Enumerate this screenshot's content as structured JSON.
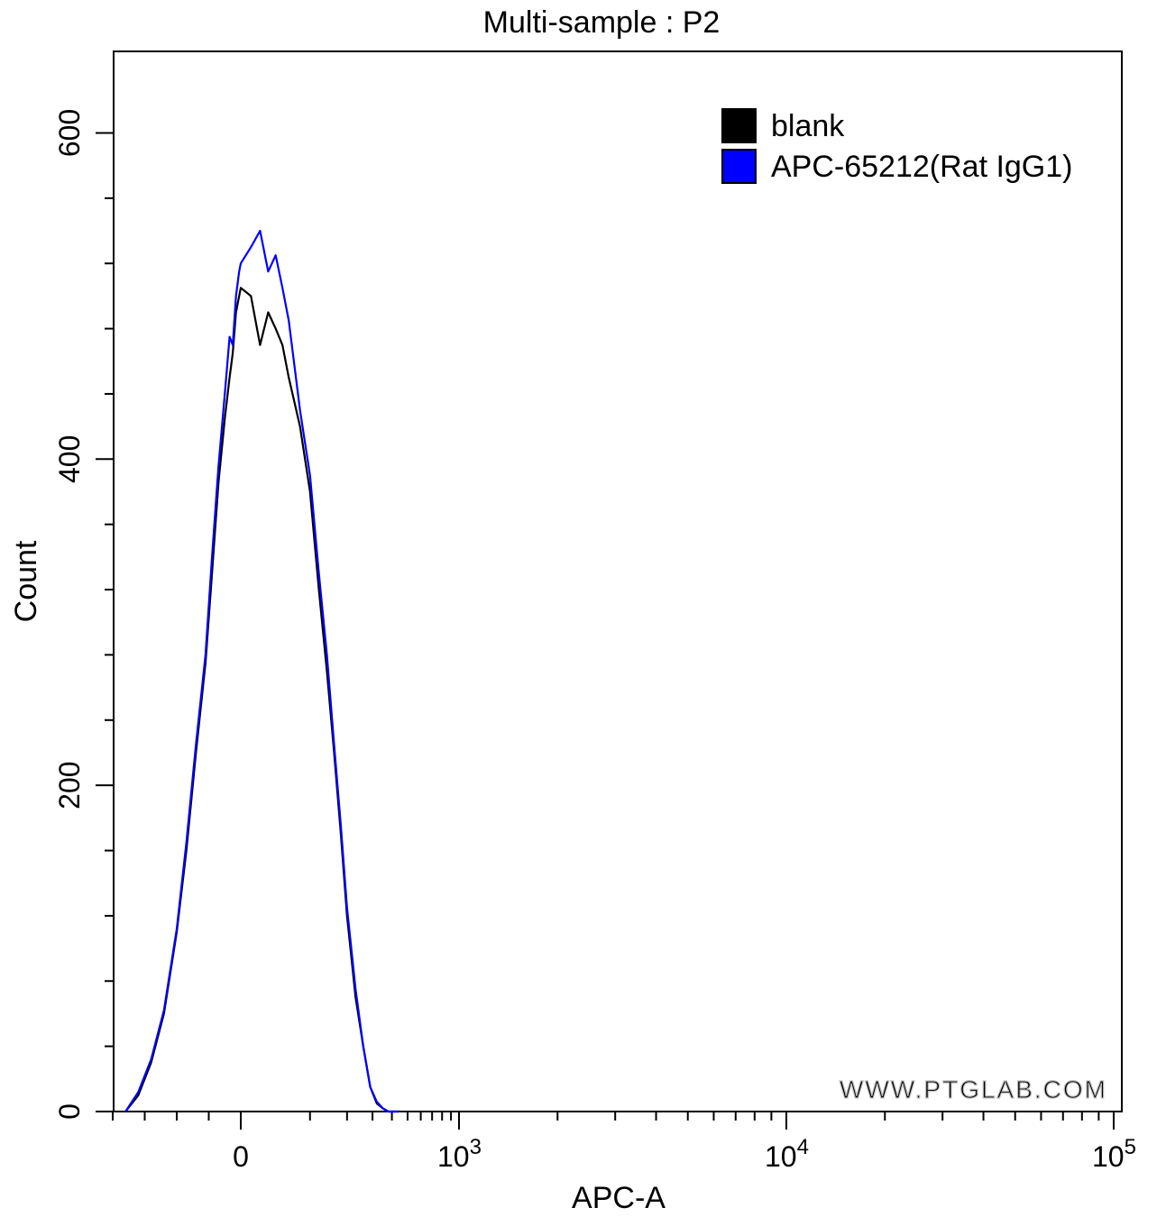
{
  "chart_data": {
    "type": "line",
    "title": "Multi-sample : P2",
    "xlabel": "APC-A",
    "ylabel": "Count",
    "x_scale": "biexponential",
    "xlim": [
      -400,
      100000
    ],
    "ylim": [
      0,
      650
    ],
    "x_tick_labels": [
      {
        "value": 0,
        "label": "0"
      },
      {
        "value": 1000,
        "base": "10",
        "exp": "3"
      },
      {
        "value": 10000,
        "base": "10",
        "exp": "4"
      },
      {
        "value": 100000,
        "base": "10",
        "exp": "5"
      }
    ],
    "y_ticks": [
      0,
      200,
      400,
      600
    ],
    "y_tick_labels": [
      "0",
      "200",
      "400",
      "600"
    ],
    "legend_position": "top-right",
    "grid": false,
    "watermark": "WWW.PTGLAB.COM",
    "series": [
      {
        "name": "blank",
        "color": "#000000",
        "x": [
          -360,
          -320,
          -280,
          -240,
          -200,
          -170,
          -140,
          -110,
          -90,
          -70,
          -50,
          -35,
          -25,
          -15,
          -5,
          0,
          10,
          20,
          30,
          40,
          50,
          60,
          80,
          100,
          120,
          140,
          160,
          180,
          200,
          230,
          260,
          290,
          320,
          350,
          380,
          410,
          440
        ],
        "y": [
          0,
          10,
          30,
          60,
          110,
          160,
          220,
          275,
          330,
          385,
          425,
          450,
          465,
          490,
          500,
          505,
          500,
          470,
          490,
          480,
          470,
          450,
          420,
          380,
          320,
          270,
          220,
          170,
          120,
          70,
          40,
          15,
          5,
          2,
          0,
          0,
          0
        ]
      },
      {
        "name": "APC-65212(Rat IgG1)",
        "color": "#0000ff",
        "x": [
          -360,
          -320,
          -280,
          -240,
          -200,
          -170,
          -140,
          -110,
          -90,
          -70,
          -50,
          -35,
          -25,
          -15,
          -5,
          0,
          10,
          20,
          30,
          40,
          50,
          60,
          80,
          100,
          120,
          140,
          160,
          180,
          200,
          230,
          260,
          290,
          320,
          350,
          380,
          410,
          440
        ],
        "y": [
          0,
          12,
          32,
          62,
          112,
          165,
          225,
          280,
          340,
          395,
          440,
          475,
          470,
          500,
          515,
          520,
          530,
          540,
          515,
          525,
          505,
          485,
          430,
          390,
          330,
          280,
          225,
          175,
          125,
          75,
          40,
          15,
          6,
          2,
          0,
          0,
          0
        ]
      }
    ]
  }
}
